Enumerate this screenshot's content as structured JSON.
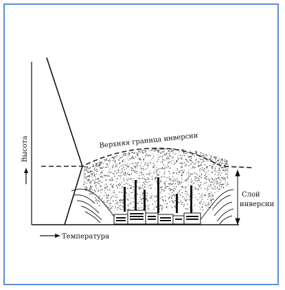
{
  "diagram": {
    "upper_boundary_label": "Верхняя граница инверсии",
    "layer_label_line1": "Слой",
    "layer_label_line2": "инверсии",
    "y_axis_label": "Высота",
    "x_axis_label": "Температура"
  },
  "colors": {
    "frame": "#5b8fd3",
    "ink": "#111111",
    "smog": "#555555"
  }
}
